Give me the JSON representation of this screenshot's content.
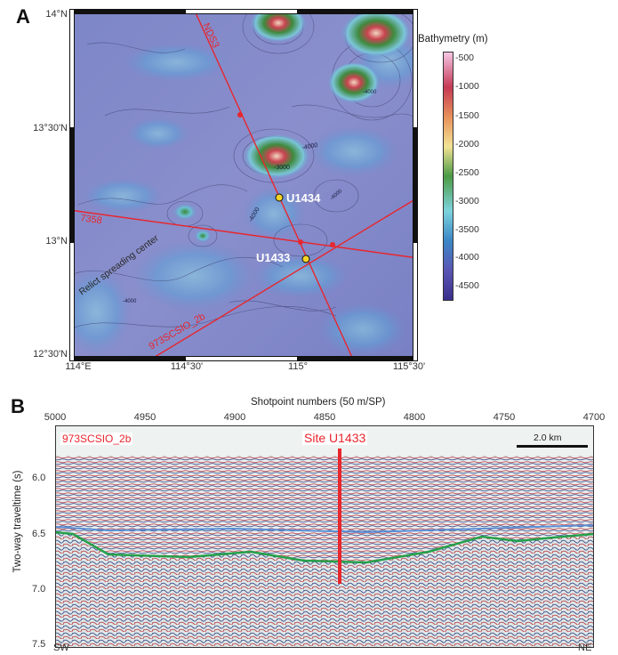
{
  "panel_a": {
    "letter": "A",
    "lat_labels": [
      "14°N",
      "13°30'N",
      "13°N",
      "12°30'N"
    ],
    "lon_labels": [
      "114°E",
      "114°30'",
      "115°",
      "115°30'"
    ],
    "profiles": [
      "NDS3",
      "7358",
      "973SCSIO_2b"
    ],
    "feature_label": "Relict spreading center",
    "sites": [
      "U1434",
      "U1433"
    ],
    "contour_labels": [
      "-4000",
      "-3000",
      "-4000",
      "-4000",
      "-4000",
      "-4000"
    ],
    "colorbar": {
      "title": "Bathymetry (m)",
      "ticks": [
        "-500",
        "-1000",
        "-1500",
        "-2000",
        "-2500",
        "-3000",
        "-3500",
        "-4000",
        "-4500"
      ],
      "colors": [
        "#f4c6e4",
        "#c63a56",
        "#e8915a",
        "#f2e394",
        "#4c9a44",
        "#7cd3dc",
        "#3b87c6",
        "#5a56b4",
        "#3a2e8c"
      ]
    }
  },
  "panel_b": {
    "letter": "B",
    "top_axis_title": "Shotpoint numbers (50 m/SP)",
    "top_ticks": [
      "5000",
      "4950",
      "4900",
      "4850",
      "4800",
      "4750",
      "4700"
    ],
    "y_axis_title": "Two-way traveltime (s)",
    "y_ticks": [
      "6.0",
      "6.5",
      "7.0",
      "7.5"
    ],
    "profile_label": "973SCSIO_2b",
    "site_label": "Site U1433",
    "scale_label": "2.0 km",
    "left_end": "SW",
    "right_end": "NE",
    "accent": "#e8262e"
  }
}
